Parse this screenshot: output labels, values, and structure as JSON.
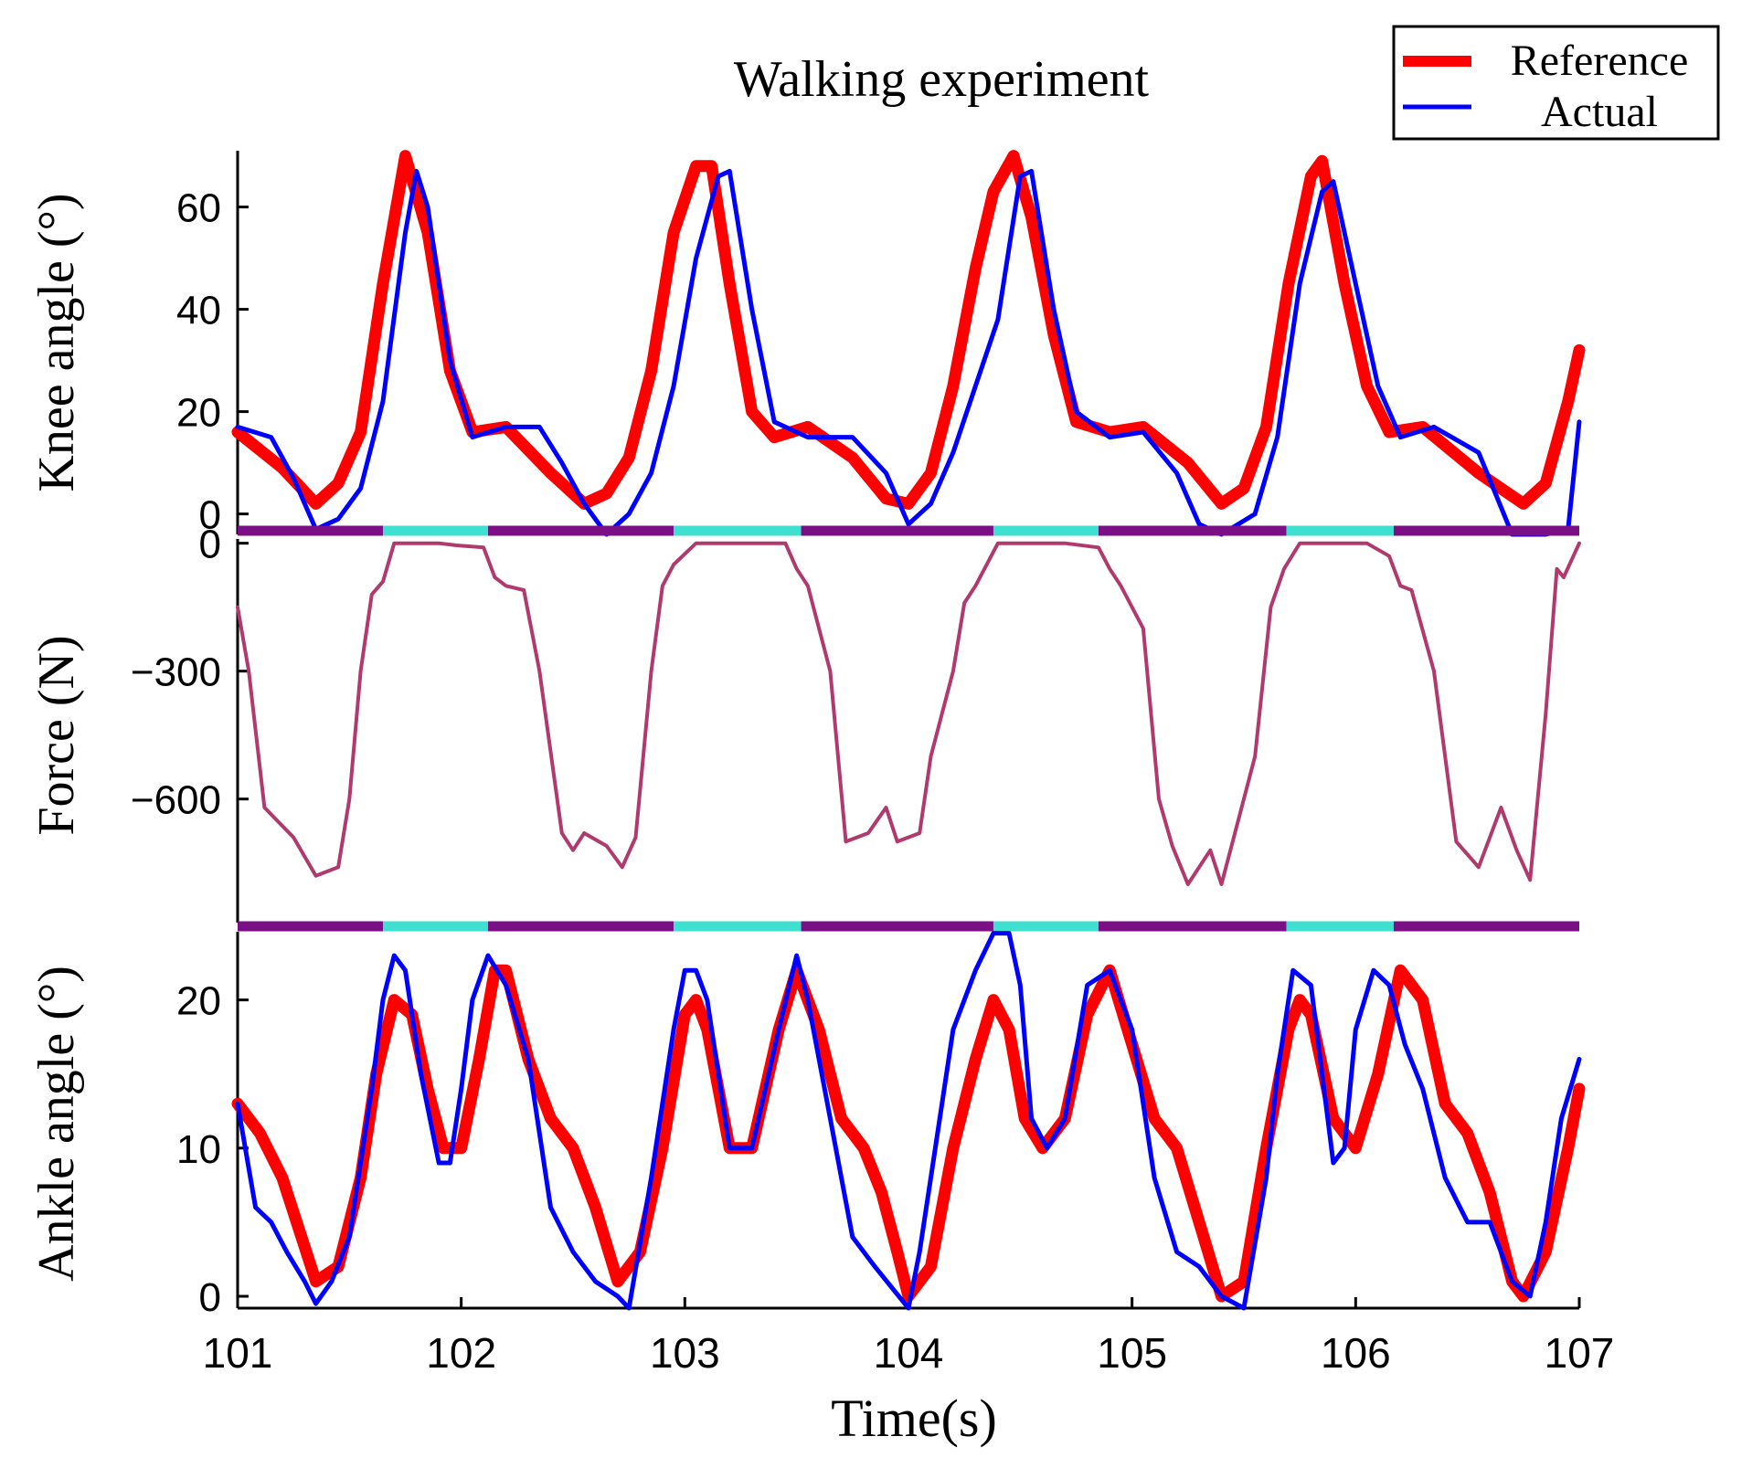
{
  "chart_data": {
    "type": "line",
    "title": "Walking experiment",
    "xlabel": "Time(s)",
    "xlim": [
      101,
      107
    ],
    "xticks": [
      "101",
      "102",
      "103",
      "104",
      "105",
      "106",
      "107"
    ],
    "legend": {
      "placement": "top-right",
      "entries": [
        "Reference",
        "Actual"
      ]
    },
    "colors": {
      "reference": "#ff0000",
      "actual": "#0000ff",
      "force": "#b03a6e",
      "stance": "#7b0f86",
      "swing": "#40e0d0",
      "axis": "#000000"
    },
    "phase_bar": [
      {
        "phase": "stance",
        "start": 101.0,
        "end": 101.65
      },
      {
        "phase": "swing",
        "start": 101.65,
        "end": 102.12
      },
      {
        "phase": "stance",
        "start": 102.12,
        "end": 102.95
      },
      {
        "phase": "swing",
        "start": 102.95,
        "end": 103.52
      },
      {
        "phase": "stance",
        "start": 103.52,
        "end": 104.38
      },
      {
        "phase": "swing",
        "start": 104.38,
        "end": 104.85
      },
      {
        "phase": "stance",
        "start": 104.85,
        "end": 105.69
      },
      {
        "phase": "swing",
        "start": 105.69,
        "end": 106.17
      },
      {
        "phase": "stance",
        "start": 106.17,
        "end": 107.0
      }
    ],
    "panels": [
      {
        "id": "knee",
        "ylabel": "Knee angle (°)",
        "ylim": [
          -4,
          71
        ],
        "yticks": [
          0,
          20,
          40,
          60
        ],
        "series": [
          {
            "name": "Reference",
            "key": "reference",
            "x": [
              101.0,
              101.2,
              101.35,
              101.45,
              101.55,
              101.65,
              101.75,
              101.85,
              101.95,
              102.05,
              102.2,
              102.4,
              102.55,
              102.65,
              102.75,
              102.85,
              102.95,
              103.05,
              103.12,
              103.2,
              103.3,
              103.4,
              103.55,
              103.75,
              103.9,
              104.0,
              104.1,
              104.2,
              104.3,
              104.38,
              104.47,
              104.55,
              104.65,
              104.75,
              104.9,
              105.05,
              105.25,
              105.4,
              105.5,
              105.6,
              105.7,
              105.8,
              105.85,
              105.95,
              106.05,
              106.15,
              106.3,
              106.55,
              106.75,
              106.85,
              106.95,
              107.0
            ],
            "values": [
              16,
              9,
              2,
              6,
              16,
              45,
              70,
              55,
              28,
              16,
              17,
              8,
              2,
              4,
              11,
              28,
              55,
              68,
              68,
              45,
              20,
              15,
              17,
              11,
              3,
              2,
              8,
              25,
              48,
              63,
              70,
              58,
              35,
              18,
              16,
              17,
              10,
              2,
              5,
              17,
              45,
              66,
              69,
              45,
              25,
              16,
              17,
              8,
              2,
              6,
              22,
              32
            ]
          },
          {
            "name": "Actual",
            "key": "actual",
            "x": [
              101.0,
              101.15,
              101.25,
              101.35,
              101.45,
              101.55,
              101.65,
              101.75,
              101.8,
              101.85,
              101.95,
              102.05,
              102.2,
              102.35,
              102.45,
              102.55,
              102.65,
              102.75,
              102.85,
              102.95,
              103.05,
              103.15,
              103.2,
              103.3,
              103.4,
              103.55,
              103.75,
              103.9,
              104.0,
              104.1,
              104.2,
              104.3,
              104.4,
              104.5,
              104.55,
              104.65,
              104.75,
              104.9,
              105.05,
              105.2,
              105.3,
              105.4,
              105.55,
              105.65,
              105.75,
              105.85,
              105.9,
              106.0,
              106.1,
              106.2,
              106.35,
              106.55,
              106.7,
              106.85,
              106.95,
              107.0
            ],
            "values": [
              17,
              15,
              7,
              -3,
              -1,
              5,
              22,
              55,
              67,
              60,
              30,
              15,
              17,
              17,
              10,
              2,
              -4,
              0,
              8,
              25,
              50,
              66,
              67,
              40,
              18,
              15,
              15,
              8,
              -2,
              2,
              12,
              25,
              38,
              66,
              67,
              40,
              20,
              15,
              16,
              8,
              -2,
              -4,
              0,
              15,
              45,
              63,
              65,
              45,
              25,
              15,
              17,
              12,
              -4,
              -4,
              -3,
              18
            ]
          }
        ]
      },
      {
        "id": "force",
        "ylabel": "Force (N)",
        "ylim": [
          -890,
          10
        ],
        "yticks": [
          0,
          -300,
          -600
        ],
        "series": [
          {
            "name": "Force",
            "key": "force",
            "x": [
              101.0,
              101.05,
              101.12,
              101.25,
              101.35,
              101.45,
              101.5,
              101.55,
              101.6,
              101.65,
              101.7,
              101.8,
              101.9,
              101.98,
              102.1,
              102.15,
              102.2,
              102.28,
              102.35,
              102.45,
              102.5,
              102.55,
              102.65,
              102.72,
              102.78,
              102.85,
              102.9,
              102.95,
              103.05,
              103.15,
              103.25,
              103.35,
              103.45,
              103.5,
              103.55,
              103.65,
              103.72,
              103.82,
              103.9,
              103.95,
              104.05,
              104.1,
              104.2,
              104.25,
              104.3,
              104.4,
              104.5,
              104.6,
              104.7,
              104.85,
              104.9,
              104.95,
              105.05,
              105.12,
              105.18,
              105.25,
              105.35,
              105.4,
              105.45,
              105.55,
              105.62,
              105.68,
              105.75,
              105.85,
              105.95,
              106.05,
              106.15,
              106.2,
              106.25,
              106.35,
              106.45,
              106.55,
              106.65,
              106.72,
              106.78,
              106.85,
              106.9,
              106.93,
              107.0
            ],
            "values": [
              -150,
              -300,
              -620,
              -690,
              -780,
              -760,
              -600,
              -300,
              -120,
              -90,
              0,
              0,
              0,
              -5,
              -10,
              -80,
              -100,
              -110,
              -300,
              -680,
              -720,
              -680,
              -710,
              -760,
              -690,
              -300,
              -100,
              -50,
              0,
              0,
              0,
              0,
              0,
              -60,
              -100,
              -300,
              -700,
              -680,
              -620,
              -700,
              -680,
              -500,
              -300,
              -140,
              -100,
              0,
              0,
              0,
              0,
              -10,
              -60,
              -100,
              -200,
              -600,
              -710,
              -800,
              -720,
              -800,
              -700,
              -500,
              -150,
              -60,
              0,
              0,
              0,
              0,
              -30,
              -100,
              -110,
              -300,
              -700,
              -760,
              -620,
              -720,
              -790,
              -400,
              -60,
              -80,
              0
            ]
          }
        ]
      },
      {
        "id": "ankle",
        "ylabel": "Ankle angle (°)",
        "ylim": [
          -0.8,
          24.6
        ],
        "yticks": [
          0,
          10,
          20
        ],
        "series": [
          {
            "name": "Reference",
            "key": "reference",
            "x": [
              101.0,
              101.1,
              101.2,
              101.35,
              101.45,
              101.55,
              101.62,
              101.7,
              101.78,
              101.85,
              101.92,
              102.0,
              102.08,
              102.15,
              102.2,
              102.3,
              102.4,
              102.5,
              102.6,
              102.7,
              102.8,
              102.9,
              103.0,
              103.05,
              103.1,
              103.2,
              103.3,
              103.42,
              103.5,
              103.6,
              103.7,
              103.8,
              103.88,
              103.95,
              104.0,
              104.1,
              104.2,
              104.3,
              104.38,
              104.45,
              104.52,
              104.6,
              104.7,
              104.8,
              104.9,
              105.0,
              105.1,
              105.2,
              105.3,
              105.4,
              105.5,
              105.6,
              105.7,
              105.75,
              105.8,
              105.9,
              106.0,
              106.1,
              106.2,
              106.3,
              106.4,
              106.5,
              106.6,
              106.7,
              106.75,
              106.85,
              106.95,
              107.0
            ],
            "values": [
              13,
              11,
              8,
              1,
              2,
              8,
              15,
              20,
              19,
              14,
              10,
              10,
              16,
              22,
              22,
              16,
              12,
              10,
              6,
              1,
              3,
              10,
              19,
              20,
              18,
              10,
              10,
              18,
              22,
              18,
              12,
              10,
              7,
              3,
              0,
              2,
              10,
              16,
              20,
              18,
              12,
              10,
              12,
              19,
              22,
              17,
              12,
              10,
              5,
              0,
              1,
              10,
              18,
              20,
              19,
              12,
              10,
              15,
              22,
              20,
              13,
              11,
              7,
              1,
              0,
              3,
              10,
              14
            ]
          },
          {
            "name": "Actual",
            "key": "actual",
            "x": [
              101.0,
              101.08,
              101.15,
              101.22,
              101.3,
              101.35,
              101.42,
              101.5,
              101.6,
              101.65,
              101.7,
              101.75,
              101.82,
              101.9,
              101.95,
              102.0,
              102.05,
              102.12,
              102.2,
              102.3,
              102.4,
              102.5,
              102.6,
              102.7,
              102.75,
              102.85,
              102.95,
              103.0,
              103.05,
              103.1,
              103.2,
              103.3,
              103.42,
              103.5,
              103.55,
              103.65,
              103.75,
              103.85,
              104.0,
              104.05,
              104.12,
              104.2,
              104.3,
              104.38,
              104.45,
              104.5,
              104.55,
              104.62,
              104.7,
              104.8,
              104.9,
              105.0,
              105.1,
              105.2,
              105.3,
              105.4,
              105.5,
              105.6,
              105.65,
              105.72,
              105.8,
              105.85,
              105.9,
              105.95,
              106.0,
              106.08,
              106.15,
              106.22,
              106.3,
              106.4,
              106.5,
              106.6,
              106.7,
              106.78,
              106.85,
              106.92,
              107.0
            ],
            "values": [
              13,
              6,
              5,
              3,
              1,
              -0.5,
              1,
              4,
              14,
              20,
              23,
              22,
              15,
              9,
              9,
              14,
              20,
              23,
              21,
              16,
              6,
              3,
              1,
              0,
              -0.8,
              8,
              18,
              22,
              22,
              20,
              10,
              10,
              18,
              23,
              20,
              12,
              4,
              2,
              -0.8,
              3,
              10,
              18,
              22,
              24.5,
              24.5,
              21,
              12,
              10,
              12,
              21,
              22,
              18,
              8,
              3,
              2,
              0,
              -0.8,
              8,
              15,
              22,
              21,
              15,
              9,
              10,
              18,
              22,
              21,
              17,
              14,
              8,
              5,
              5,
              1,
              0,
              5,
              12,
              16
            ]
          }
        ]
      }
    ]
  }
}
